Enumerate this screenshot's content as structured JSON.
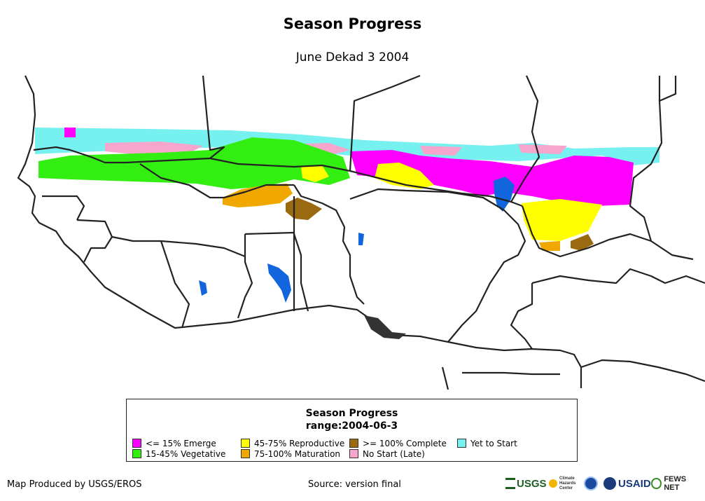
{
  "title": "Season Progress",
  "subtitle": "June Dekad 3 2004",
  "legend": {
    "title": "Season Progress",
    "subtitle": "range:2004-06-3",
    "items": [
      {
        "label": "<= 15% Emerge",
        "color": "#ff00ff"
      },
      {
        "label": "15-45% Vegetative",
        "color": "#33ee11"
      },
      {
        "label": "45-75% Reproductive",
        "color": "#ffff00"
      },
      {
        "label": "75-100% Maturation",
        "color": "#f0a800"
      },
      {
        "label": ">= 100% Complete",
        "color": "#9a6a10"
      },
      {
        "label": "No Start (Late)",
        "color": "#f6a6cc"
      },
      {
        "label": "Yet to Start",
        "color": "#77f0f0"
      }
    ]
  },
  "footer": {
    "produced_by": "Map Produced by USGS/EROS",
    "source": "Source: version final"
  },
  "logos": {
    "usgs": "USGS",
    "chc": "Climate Hazards Center",
    "usaid": "USAID",
    "fews": "FEWS NET"
  },
  "colors": {
    "water": "#1166dd",
    "border": "#222222"
  }
}
